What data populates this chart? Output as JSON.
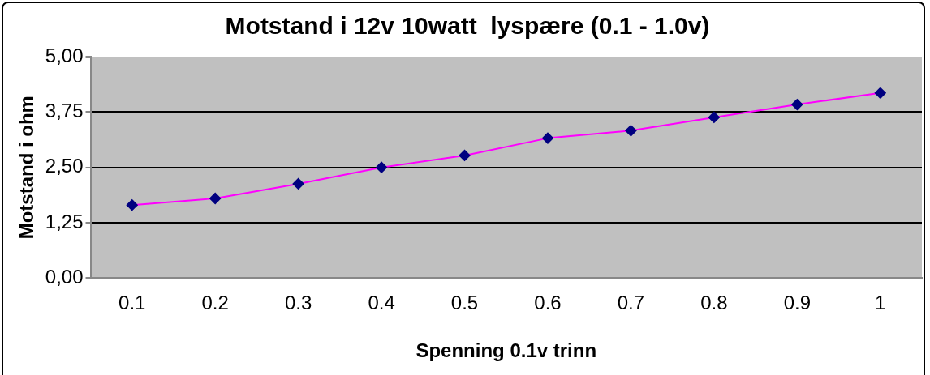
{
  "chart_data": {
    "type": "line",
    "title": "Motstand i 12v 10watt  lyspære (0.1 - 1.0v)",
    "xlabel": "Spenning 0.1v trinn",
    "ylabel": "Motstand i ohm",
    "categories": [
      "0.1",
      "0.2",
      "0.3",
      "0.4",
      "0.5",
      "0.6",
      "0.7",
      "0.8",
      "0.9",
      "1"
    ],
    "series": [
      {
        "color": "#ff00ff",
        "colors": [
          "#000080",
          "#000080",
          "#000080",
          "#000080",
          "#000080",
          "#000080",
          "#000080",
          "#000080",
          "#000080",
          "#000080"
        ],
        "values": [
          1.65,
          1.8,
          2.13,
          2.5,
          2.77,
          3.16,
          3.33,
          3.63,
          3.92,
          4.18
        ]
      }
    ],
    "ylim": [
      0,
      5
    ],
    "yticks": [
      {
        "value": 0,
        "label": "0,00"
      },
      {
        "value": 1.25,
        "label": "1,25"
      },
      {
        "value": 2.5,
        "label": "2,50"
      },
      {
        "value": 3.75,
        "label": "3,75"
      },
      {
        "value": 5,
        "label": "5,00"
      }
    ],
    "grid": "y",
    "legend": false,
    "marker": "diamond",
    "line_style": "solid"
  }
}
